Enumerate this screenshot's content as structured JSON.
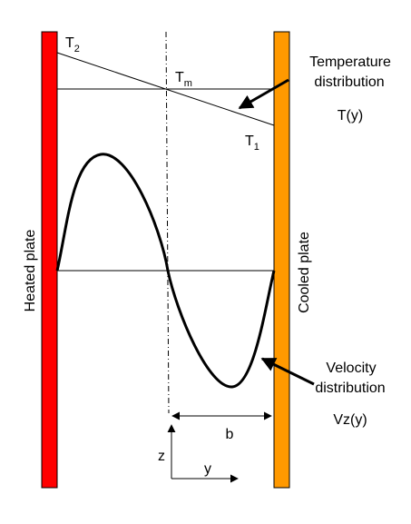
{
  "labels": {
    "t2": {
      "base": "T",
      "sub": "2"
    },
    "tm": {
      "base": "T",
      "sub": "m"
    },
    "t1": {
      "base": "T",
      "sub": "1"
    },
    "temperature_line1": "Temperature",
    "temperature_line2": "distribution",
    "temperature_func": "T(y)",
    "velocity_line1": "Velocity",
    "velocity_line2": "distribution",
    "velocity_func": "Vz(y)",
    "width_label": "b",
    "axis_z": "z",
    "axis_y": "y",
    "heated_plate": "Heated plate",
    "cooled_plate": "Cooled plate"
  },
  "colors": {
    "heated_plate": "#ff0000",
    "cooled_plate": "#ff9900",
    "stroke": "#000000",
    "background": "#ffffff"
  }
}
